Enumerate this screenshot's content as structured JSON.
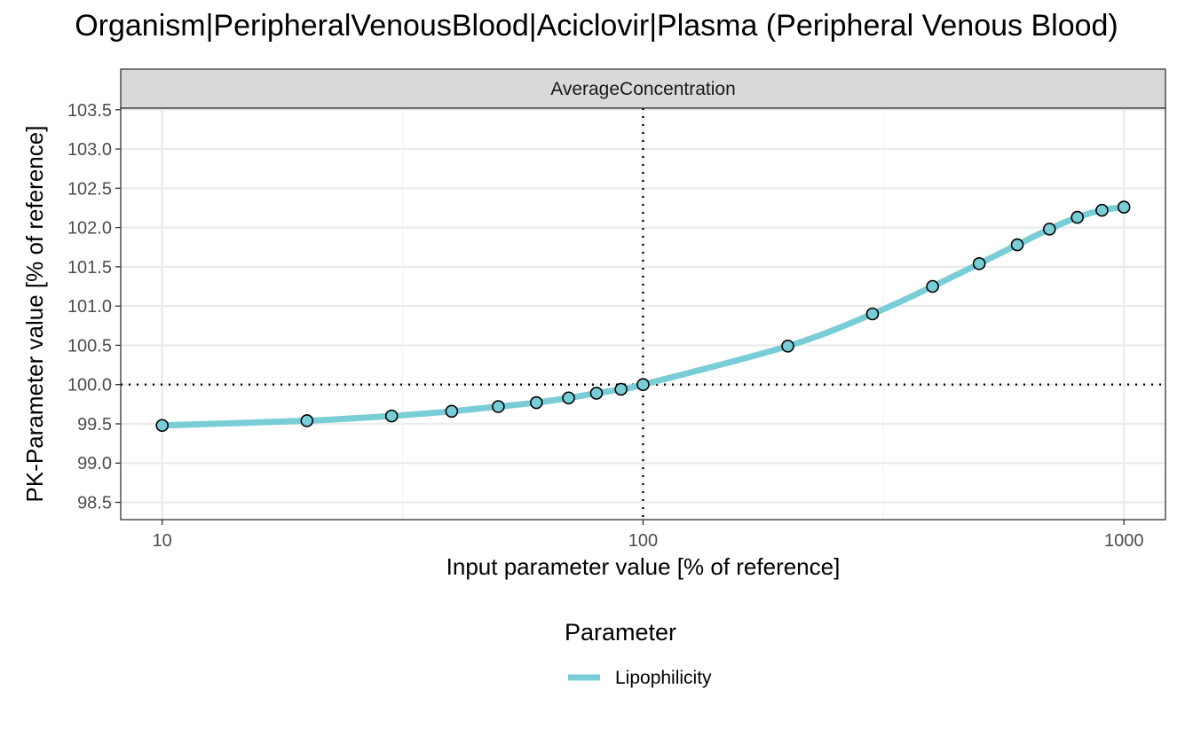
{
  "chart_data": {
    "type": "line",
    "title": "Organism|PeripheralVenousBlood|Aciclovir|Plasma (Peripheral Venous Blood)",
    "facet": "AverageConcentration",
    "xlabel": "Input parameter value [% of reference]",
    "ylabel": "PK-Parameter value [% of reference]",
    "x_scale": "log10",
    "xlim": [
      8.2,
      1220
    ],
    "ylim": [
      98.28,
      103.52
    ],
    "x_ticks": [
      10,
      100,
      1000
    ],
    "x_tick_labels": [
      "10",
      "100",
      "1000"
    ],
    "y_ticks": [
      98.5,
      99.0,
      99.5,
      100.0,
      100.5,
      101.0,
      101.5,
      102.0,
      102.5,
      103.0,
      103.5
    ],
    "y_tick_labels": [
      "98.5",
      "99.0",
      "99.5",
      "100.0",
      "100.5",
      "101.0",
      "101.5",
      "102.0",
      "102.5",
      "103.0",
      "103.5"
    ],
    "reference_lines": {
      "x": 100,
      "y": 100.0
    },
    "grid": true,
    "legend": {
      "title": "Parameter",
      "position": "bottom"
    },
    "series": [
      {
        "name": "Lipophilicity",
        "color": "#79CDD7",
        "x": [
          10,
          20,
          30,
          40,
          50,
          60,
          70,
          80,
          90,
          100,
          200,
          300,
          400,
          500,
          600,
          700,
          800,
          900,
          1000
        ],
        "y": [
          99.48,
          99.54,
          99.6,
          99.66,
          99.72,
          99.77,
          99.83,
          99.89,
          99.94,
          100.0,
          100.49,
          100.9,
          101.25,
          101.54,
          101.78,
          101.98,
          102.13,
          102.22,
          102.26
        ]
      }
    ]
  }
}
